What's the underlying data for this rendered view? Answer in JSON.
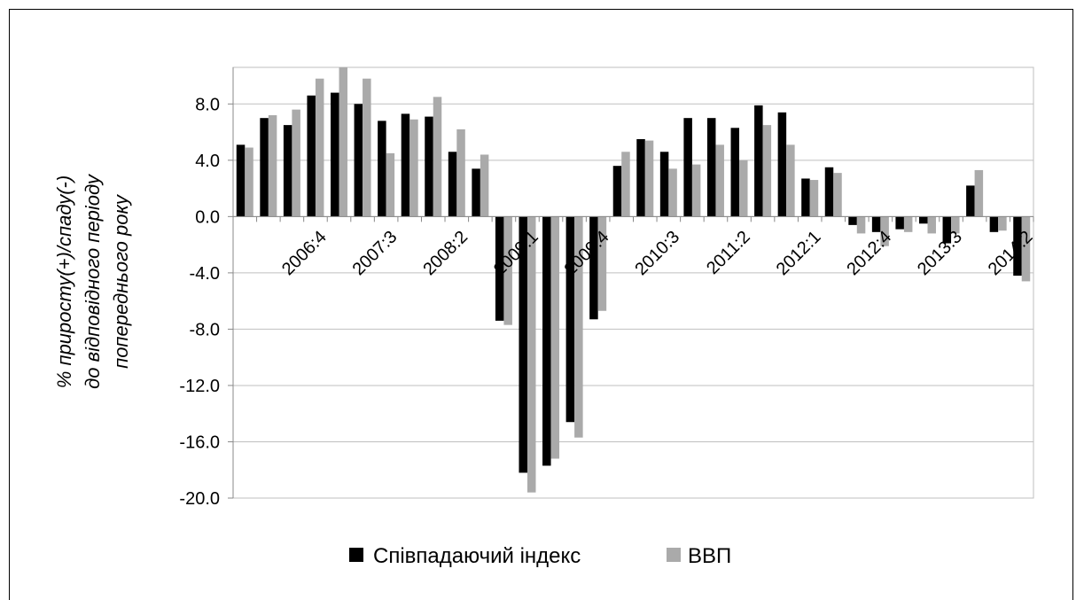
{
  "chart_data": {
    "type": "bar",
    "ylabel_lines": [
      "% приросту(+)/спаду(-)",
      "до відповідного періоду",
      "попереднього року"
    ],
    "xlabel": "",
    "ylim": [
      -20,
      10
    ],
    "yticks": [
      "8.0",
      "4.0",
      "0.0",
      "-4.0",
      "-8.0",
      "-12.0",
      "-16.0",
      "-20.0"
    ],
    "ytick_values": [
      8,
      4,
      0,
      -4,
      -8,
      -12,
      -16,
      -20
    ],
    "grid": true,
    "legend_position": "bottom",
    "categories": [
      "2006:1",
      "2006:2",
      "2006:3",
      "2006:4",
      "2007:1",
      "2007:2",
      "2007:3",
      "2007:4",
      "2008:1",
      "2008:2",
      "2008:3",
      "2008:4",
      "2009:1",
      "2009:2",
      "2009:3",
      "2009:4",
      "2010:1",
      "2010:2",
      "2010:3",
      "2010:4",
      "2011:1",
      "2011:2",
      "2011:3",
      "2011:4",
      "2012:1",
      "2012:2",
      "2012:3",
      "2012:4",
      "2013:1",
      "2013:2",
      "2013:3",
      "2013:4",
      "2014:1",
      "2014:2"
    ],
    "tick_labels": [
      "2006:4",
      "2007:3",
      "2008:2",
      "2009:1",
      "2009:4",
      "2010:3",
      "2011:2",
      "2012:1",
      "2012:4",
      "2013:3",
      "2014:2"
    ],
    "tick_label_indices": [
      3,
      6,
      9,
      12,
      15,
      18,
      21,
      24,
      27,
      30,
      33
    ],
    "series": [
      {
        "name": "Співпадаючий індекс",
        "color": "#000000",
        "values": [
          5.1,
          7.0,
          6.5,
          8.6,
          8.8,
          8.0,
          6.8,
          7.3,
          7.1,
          4.6,
          3.4,
          -7.4,
          -18.2,
          -17.7,
          -14.6,
          -7.3,
          3.6,
          5.5,
          4.6,
          7.0,
          7.0,
          6.3,
          7.9,
          7.4,
          2.7,
          3.5,
          -0.6,
          -1.1,
          -0.9,
          -0.5,
          -1.9,
          2.2,
          -1.1,
          -4.2
        ]
      },
      {
        "name": "ВВП",
        "color": "#aaaaaa",
        "values": [
          4.9,
          7.2,
          7.6,
          9.8,
          10.6,
          9.8,
          4.5,
          6.9,
          8.5,
          6.2,
          4.4,
          -7.7,
          -19.6,
          -17.2,
          -15.7,
          -6.7,
          4.6,
          5.4,
          3.4,
          3.7,
          5.1,
          4.0,
          6.5,
          5.1,
          2.6,
          3.1,
          -1.2,
          -2.1,
          -1.1,
          -1.2,
          -1.2,
          3.3,
          -1.0,
          -4.6
        ]
      }
    ]
  }
}
